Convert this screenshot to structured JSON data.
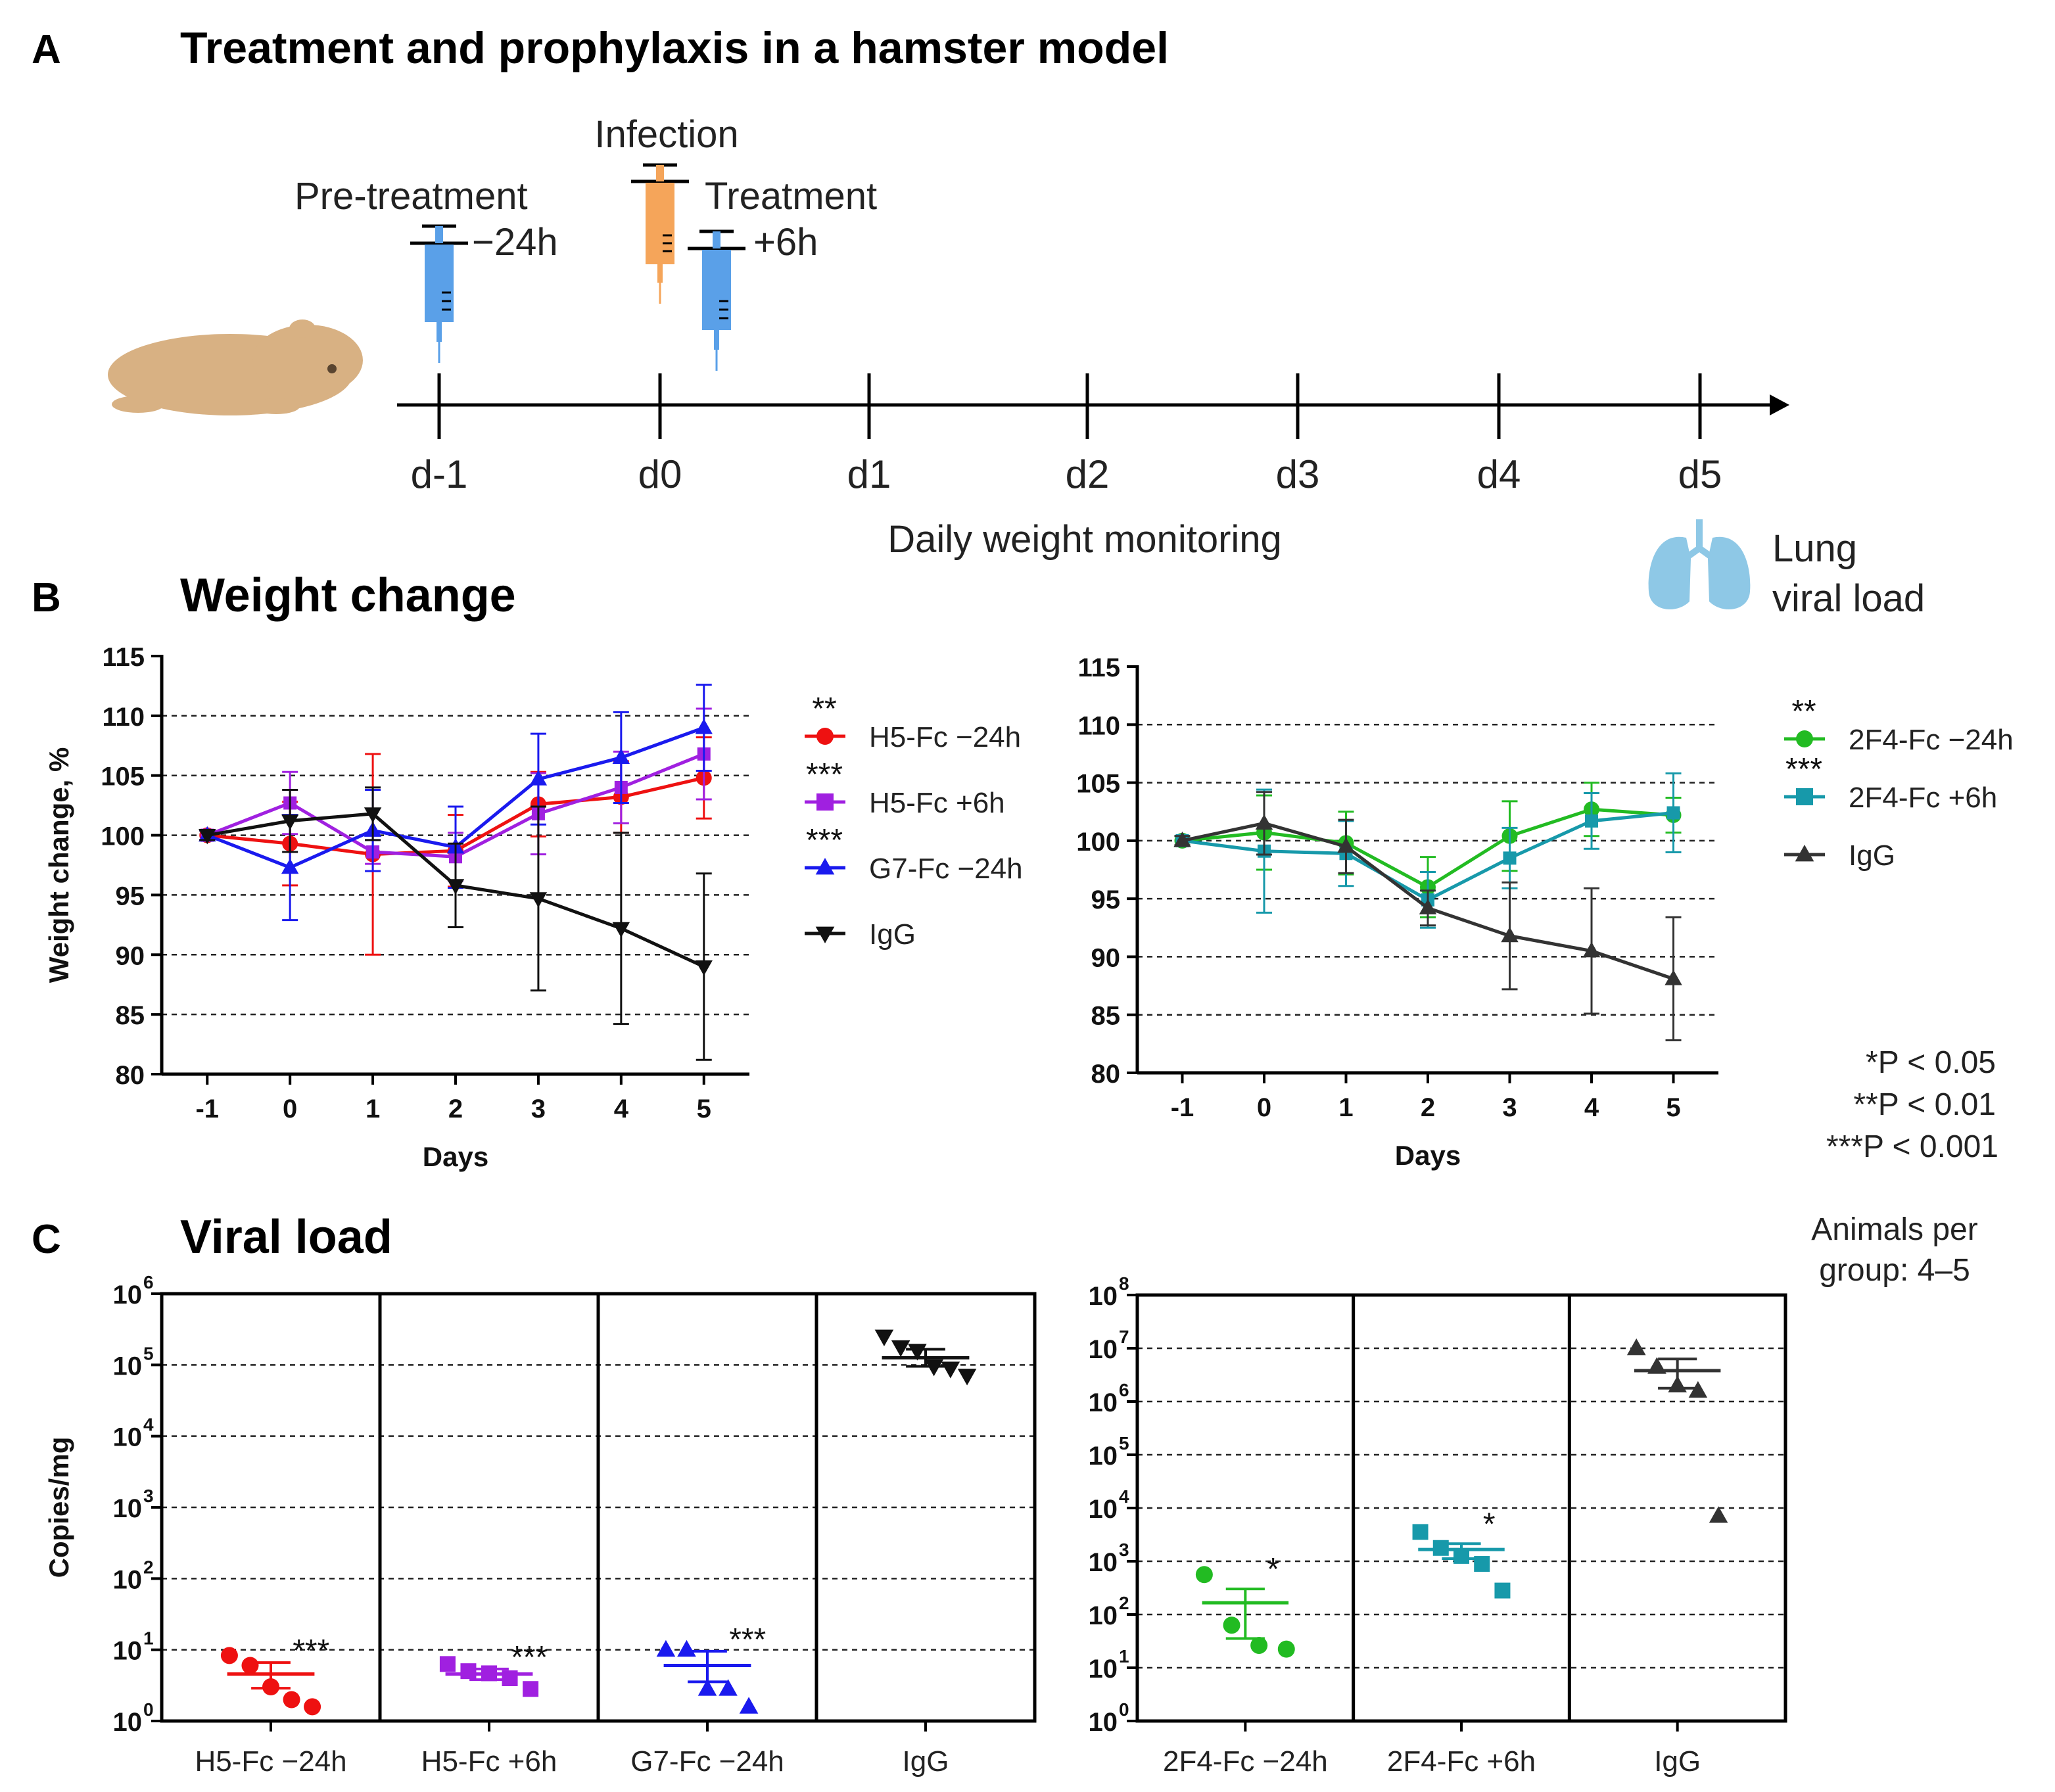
{
  "panel_a": {
    "letter": "A",
    "title": "Treatment and prophylaxis in a hamster model",
    "pretreatment_label": "Pre-treatment",
    "pretreatment_time": "−24h",
    "infection_label": "Infection",
    "treatment_label": "Treatment",
    "treatment_time": "+6h",
    "timeline_days": [
      "d-1",
      "d0",
      "d1",
      "d2",
      "d3",
      "d4",
      "d5"
    ],
    "monitoring_label": "Daily weight monitoring",
    "lung_label_1": "Lung",
    "lung_label_2": "viral load",
    "colors": {
      "syringe_treatment": "#5aa0e8",
      "syringe_infection": "#f5a55a",
      "hamster": "#d8b183",
      "lung": "#8ec8e6"
    }
  },
  "panel_b": {
    "letter": "B",
    "title": "Weight change"
  },
  "panel_c": {
    "letter": "C",
    "title": "Viral load"
  },
  "significance_key": [
    "*P < 0.05",
    "**P < 0.01",
    "***P < 0.001"
  ],
  "animals_note": [
    "Animals per",
    "group: 4–5"
  ],
  "chart_data": [
    {
      "id": "weight_left",
      "type": "line",
      "xlabel": "Days",
      "ylabel": "Weight change, %",
      "x": [
        -1,
        0,
        1,
        2,
        3,
        4,
        5
      ],
      "ylim": [
        80,
        115
      ],
      "yticks": [
        80,
        85,
        90,
        95,
        100,
        105,
        110,
        115
      ],
      "series": [
        {
          "name": "H5-Fc −24h",
          "sig": "**",
          "color": "#ee1111",
          "marker": "circle",
          "values": [
            100,
            99.3,
            98.4,
            98.7,
            102.6,
            103.2,
            104.8
          ],
          "err": [
            0.4,
            3.5,
            8.4,
            3.0,
            2.7,
            3.0,
            3.4
          ]
        },
        {
          "name": "H5-Fc +6h",
          "sig": "***",
          "color": "#a020e0",
          "marker": "square",
          "values": [
            100,
            102.7,
            98.6,
            98.2,
            101.8,
            104.0,
            106.8
          ],
          "err": [
            0.4,
            2.6,
            1.0,
            2.0,
            3.4,
            3.0,
            3.8
          ]
        },
        {
          "name": "G7-Fc −24h",
          "sig": "***",
          "color": "#1a1aee",
          "marker": "triangle-up",
          "values": [
            100,
            97.3,
            100.4,
            99.0,
            104.7,
            106.5,
            109.0
          ],
          "err": [
            0.4,
            4.4,
            3.4,
            3.4,
            3.8,
            3.8,
            3.6
          ]
        },
        {
          "name": "IgG",
          "sig": "",
          "color": "#111111",
          "marker": "triangle-down",
          "values": [
            100,
            101.2,
            101.8,
            95.8,
            94.7,
            92.2,
            89.0
          ],
          "err": [
            0.4,
            2.6,
            2.2,
            3.5,
            7.7,
            8.0,
            7.8
          ]
        }
      ]
    },
    {
      "id": "weight_right",
      "type": "line",
      "xlabel": "Days",
      "ylabel": "",
      "x": [
        -1,
        0,
        1,
        2,
        3,
        4,
        5
      ],
      "ylim": [
        80,
        115
      ],
      "yticks": [
        80,
        85,
        90,
        95,
        100,
        105,
        110,
        115
      ],
      "series": [
        {
          "name": "2F4-Fc −24h",
          "sig": "**",
          "color": "#22bb22",
          "marker": "circle",
          "values": [
            100,
            100.7,
            99.8,
            96.0,
            100.4,
            102.7,
            102.2
          ],
          "err": [
            0.4,
            3.2,
            2.7,
            2.6,
            3.0,
            2.3,
            1.5
          ]
        },
        {
          "name": "2F4-Fc +6h",
          "sig": "***",
          "color": "#1799aa",
          "marker": "square",
          "values": [
            100,
            99.1,
            98.9,
            94.9,
            98.5,
            101.7,
            102.4
          ],
          "err": [
            0.4,
            5.3,
            2.8,
            2.4,
            2.6,
            2.4,
            3.4
          ]
        },
        {
          "name": "IgG",
          "sig": "",
          "color": "#333333",
          "marker": "triangle-up",
          "values": [
            100,
            101.5,
            99.5,
            94.2,
            91.8,
            90.5,
            88.1
          ],
          "err": [
            0.4,
            2.7,
            2.3,
            1.5,
            4.6,
            5.4,
            5.3
          ]
        }
      ]
    },
    {
      "id": "viral_left",
      "type": "scatter",
      "ylabel": "Copies/mg",
      "yscale": "log10",
      "ylim_exp": [
        0,
        6
      ],
      "categories": [
        "H5-Fc −24h",
        "H5-Fc +6h",
        "G7-Fc −24h",
        "IgG"
      ],
      "groups": [
        {
          "name": "H5-Fc −24h",
          "sig": "***",
          "color": "#ee1111",
          "marker": "circle",
          "points_log10": [
            0.92,
            0.78,
            0.48,
            0.3,
            0.2
          ],
          "mean_log10": 0.66,
          "sem_hi_log10": 0.82,
          "sem_lo_log10": 0.46
        },
        {
          "name": "H5-Fc +6h",
          "sig": "***",
          "color": "#a020e0",
          "marker": "square",
          "points_log10": [
            0.8,
            0.7,
            0.67,
            0.6,
            0.45
          ],
          "mean_log10": 0.66,
          "sem_hi_log10": 0.73,
          "sem_lo_log10": 0.58
        },
        {
          "name": "G7-Fc −24h",
          "sig": "***",
          "color": "#1a1aee",
          "marker": "triangle-up",
          "points_log10": [
            1.0,
            1.0,
            0.45,
            0.45,
            0.2
          ],
          "mean_log10": 0.78,
          "sem_hi_log10": 0.98,
          "sem_lo_log10": 0.55
        },
        {
          "name": "IgG",
          "sig": "",
          "color": "#111111",
          "marker": "triangle-down",
          "points_log10": [
            5.4,
            5.25,
            5.2,
            4.98,
            4.95,
            4.85
          ],
          "mean_log10": 5.1,
          "sem_hi_log10": 5.22,
          "sem_lo_log10": 4.98
        }
      ]
    },
    {
      "id": "viral_right",
      "type": "scatter",
      "ylabel": "",
      "yscale": "log10",
      "ylim_exp": [
        0,
        8
      ],
      "categories": [
        "2F4-Fc −24h",
        "2F4-Fc +6h",
        "IgG"
      ],
      "groups": [
        {
          "name": "2F4-Fc −24h",
          "sig": "*",
          "color": "#22bb22",
          "marker": "circle",
          "points_log10": [
            2.75,
            1.8,
            1.42,
            1.35
          ],
          "mean_log10": 2.22,
          "sem_hi_log10": 2.48,
          "sem_lo_log10": 1.55
        },
        {
          "name": "2F4-Fc +6h",
          "sig": "*",
          "color": "#1799aa",
          "marker": "square",
          "points_log10": [
            3.55,
            3.25,
            3.1,
            2.95,
            2.45
          ],
          "mean_log10": 3.22,
          "sem_hi_log10": 3.33,
          "sem_lo_log10": 3.05
        },
        {
          "name": "IgG",
          "sig": "",
          "color": "#333333",
          "marker": "triangle-up",
          "points_log10": [
            7.0,
            6.65,
            6.3,
            6.2,
            3.85
          ],
          "mean_log10": 6.58,
          "sem_hi_log10": 6.8,
          "sem_lo_log10": 6.25
        }
      ]
    }
  ]
}
